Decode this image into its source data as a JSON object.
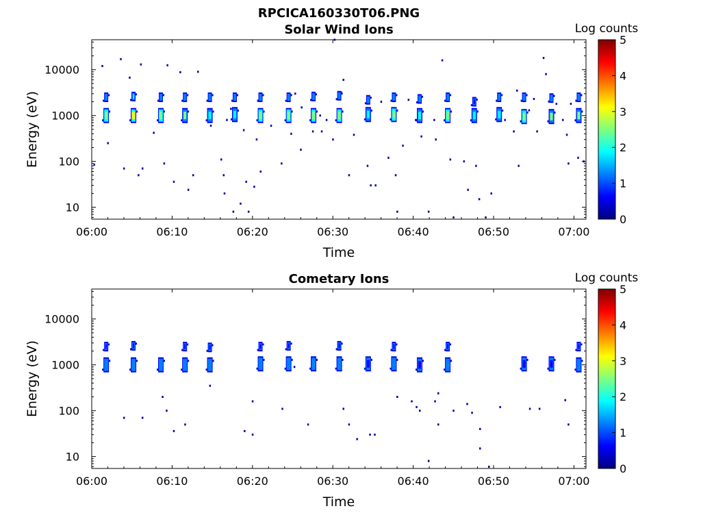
{
  "figure_title": "RPCICA160330T06.PNG",
  "colors": {
    "colormap": [
      "#00007f",
      "#0000ff",
      "#007fff",
      "#00ffff",
      "#7fff7f",
      "#ffff00",
      "#ff7f00",
      "#ff0000",
      "#7f0000"
    ]
  },
  "chart_data": [
    {
      "type": "heatmap",
      "title": "Solar Wind Ions",
      "xlabel": "Time",
      "ylabel": "Energy (eV)",
      "x_ticks": [
        "06:00",
        "06:10",
        "06:20",
        "06:30",
        "06:40",
        "06:50",
        "07:00"
      ],
      "x_range_minutes": [
        0,
        61.5
      ],
      "y_scale": "log",
      "y_ticks": [
        "10",
        "100",
        "1000",
        "10000"
      ],
      "y_range_ev": [
        5.5,
        45000
      ],
      "colorbar": {
        "label": "Log counts",
        "ticks": [
          "0",
          "1",
          "2",
          "3",
          "4",
          "5"
        ],
        "range": [
          0,
          5
        ]
      },
      "sweeps": [
        {
          "t": 1.8,
          "e1": 1000,
          "e2": 2500,
          "peak": 2.3
        },
        {
          "t": 5.2,
          "e1": 1000,
          "e2": 2600,
          "peak": 2.9
        },
        {
          "t": 8.6,
          "e1": 1000,
          "e2": 2500,
          "peak": 2.3
        },
        {
          "t": 11.6,
          "e1": 1000,
          "e2": 2500,
          "peak": 2.2
        },
        {
          "t": 14.7,
          "e1": 1000,
          "e2": 2500,
          "peak": 2.0
        },
        {
          "t": 17.8,
          "e1": 1050,
          "e2": 2500,
          "peak": 2.1
        },
        {
          "t": 21.0,
          "e1": 1000,
          "e2": 2500,
          "peak": 2.6
        },
        {
          "t": 24.5,
          "e1": 1000,
          "e2": 2500,
          "peak": 2.4
        },
        {
          "t": 27.6,
          "e1": 1000,
          "e2": 2600,
          "peak": 2.5
        },
        {
          "t": 30.8,
          "e1": 1000,
          "e2": 2700,
          "peak": 2.4
        },
        {
          "t": 34.4,
          "e1": 1050,
          "e2": 2200,
          "peak": 1.8
        },
        {
          "t": 37.6,
          "e1": 1050,
          "e2": 2500,
          "peak": 2.4
        },
        {
          "t": 40.8,
          "e1": 1000,
          "e2": 2300,
          "peak": 1.9
        },
        {
          "t": 44.3,
          "e1": 1000,
          "e2": 2500,
          "peak": 2.6
        },
        {
          "t": 47.6,
          "e1": 1000,
          "e2": 2000,
          "peak": 1.6
        },
        {
          "t": 50.7,
          "e1": 1050,
          "e2": 2500,
          "peak": 2.0
        },
        {
          "t": 53.8,
          "e1": 950,
          "e2": 2500,
          "peak": 2.3
        },
        {
          "t": 57.2,
          "e1": 950,
          "e2": 2400,
          "peak": 2.2
        },
        {
          "t": 60.6,
          "e1": 1000,
          "e2": 2500,
          "peak": 2.2
        }
      ],
      "dots": [
        [
          0.3,
          85
        ],
        [
          1.3,
          12000
        ],
        [
          2.0,
          250
        ],
        [
          3.6,
          17000
        ],
        [
          4.0,
          70
        ],
        [
          4.7,
          6700
        ],
        [
          5.8,
          50
        ],
        [
          6.1,
          13000
        ],
        [
          6.3,
          70
        ],
        [
          7.7,
          420
        ],
        [
          9.0,
          90
        ],
        [
          9.4,
          12500
        ],
        [
          10.2,
          36
        ],
        [
          11.0,
          8800
        ],
        [
          12.6,
          50
        ],
        [
          13.2,
          9000
        ],
        [
          12.0,
          24
        ],
        [
          14.8,
          600
        ],
        [
          16.1,
          110
        ],
        [
          16.4,
          50
        ],
        [
          16.5,
          20
        ],
        [
          17.3,
          1400
        ],
        [
          17.6,
          8
        ],
        [
          18.5,
          12
        ],
        [
          19.2,
          36
        ],
        [
          19.5,
          8
        ],
        [
          20.2,
          28
        ],
        [
          20.5,
          300
        ],
        [
          21.0,
          60
        ],
        [
          22.3,
          600
        ],
        [
          23.6,
          90
        ],
        [
          24.8,
          400
        ],
        [
          25.3,
          3000
        ],
        [
          26.1,
          1500
        ],
        [
          27.5,
          450
        ],
        [
          28.4,
          1000
        ],
        [
          28.6,
          450
        ],
        [
          29.2,
          800
        ],
        [
          30.0,
          300
        ],
        [
          31.3,
          6000
        ],
        [
          32.0,
          50
        ],
        [
          32.6,
          380
        ],
        [
          34.3,
          80
        ],
        [
          34.7,
          30
        ],
        [
          35.3,
          30
        ],
        [
          36.9,
          120
        ],
        [
          37.8,
          50
        ],
        [
          38.0,
          8
        ],
        [
          38.7,
          220
        ],
        [
          39.4,
          2200
        ],
        [
          40.3,
          800
        ],
        [
          41.0,
          350
        ],
        [
          41.9,
          8
        ],
        [
          42.6,
          800
        ],
        [
          43.6,
          16000
        ],
        [
          44.6,
          110
        ],
        [
          45.0,
          6
        ],
        [
          46.3,
          100
        ],
        [
          46.8,
          24
        ],
        [
          47.8,
          80
        ],
        [
          48.2,
          15
        ],
        [
          49.0,
          6
        ],
        [
          49.7,
          20
        ],
        [
          51.4,
          800
        ],
        [
          52.5,
          450
        ],
        [
          53.1,
          80
        ],
        [
          54.4,
          1300
        ],
        [
          55.0,
          2300
        ],
        [
          55.4,
          450
        ],
        [
          56.2,
          18000
        ],
        [
          56.5,
          8000
        ],
        [
          57.8,
          1800
        ],
        [
          58.6,
          800
        ],
        [
          59.1,
          380
        ],
        [
          59.3,
          90
        ],
        [
          59.6,
          1800
        ],
        [
          60.5,
          120
        ],
        [
          61.2,
          100
        ],
        [
          30.2,
          45000
        ],
        [
          31.0,
          3200
        ],
        [
          36.0,
          2000
        ],
        [
          16.8,
          800
        ],
        [
          42.8,
          300
        ],
        [
          26.0,
          180
        ],
        [
          52.9,
          3500
        ],
        [
          18.9,
          480
        ]
      ]
    },
    {
      "type": "heatmap",
      "title": "Cometary Ions",
      "xlabel": "Time",
      "ylabel": "Energy (eV)",
      "x_ticks": [
        "06:00",
        "06:10",
        "06:20",
        "06:30",
        "06:40",
        "06:50",
        "07:00"
      ],
      "x_range_minutes": [
        0,
        61.5
      ],
      "y_scale": "log",
      "y_ticks": [
        "10",
        "100",
        "1000",
        "10000"
      ],
      "y_range_ev": [
        5.5,
        45000
      ],
      "colorbar": {
        "label": "Log counts",
        "ticks": [
          "0",
          "1",
          "2",
          "3",
          "4",
          "5"
        ],
        "range": [
          0,
          5
        ]
      },
      "sweeps": [
        {
          "t": 1.8,
          "e1": 1000,
          "e2": 2500,
          "peak": 1.3
        },
        {
          "t": 5.2,
          "e1": 1000,
          "e2": 2600,
          "peak": 1.4
        },
        {
          "t": 8.6,
          "e1": 1000,
          "e2": 0,
          "peak": 1.2
        },
        {
          "t": 11.6,
          "e1": 1000,
          "e2": 2500,
          "peak": 1.3
        },
        {
          "t": 14.7,
          "e1": 1000,
          "e2": 2400,
          "peak": 1.1
        },
        {
          "t": 21.0,
          "e1": 1050,
          "e2": 2500,
          "peak": 1.3
        },
        {
          "t": 24.5,
          "e1": 1050,
          "e2": 2600,
          "peak": 1.1
        },
        {
          "t": 27.6,
          "e1": 1050,
          "e2": 0,
          "peak": 1.1
        },
        {
          "t": 30.8,
          "e1": 1050,
          "e2": 2600,
          "peak": 1.2
        },
        {
          "t": 34.4,
          "e1": 1050,
          "e2": 0,
          "peak": 0.9
        },
        {
          "t": 37.6,
          "e1": 1050,
          "e2": 2500,
          "peak": 1.4
        },
        {
          "t": 40.8,
          "e1": 1000,
          "e2": 0,
          "peak": 0.9
        },
        {
          "t": 44.3,
          "e1": 1000,
          "e2": 2500,
          "peak": 1.3
        },
        {
          "t": 53.8,
          "e1": 1050,
          "e2": 0,
          "peak": 0.9
        },
        {
          "t": 57.2,
          "e1": 1050,
          "e2": 0,
          "peak": 0.9
        },
        {
          "t": 60.6,
          "e1": 1000,
          "e2": 2500,
          "peak": 1.0
        }
      ],
      "dots": [
        [
          4.0,
          70
        ],
        [
          6.3,
          70
        ],
        [
          8.8,
          200
        ],
        [
          9.3,
          100
        ],
        [
          10.2,
          36
        ],
        [
          11.6,
          50
        ],
        [
          14.7,
          350
        ],
        [
          19.0,
          36
        ],
        [
          20.0,
          30
        ],
        [
          20.0,
          160
        ],
        [
          23.7,
          110
        ],
        [
          25.2,
          900
        ],
        [
          26.9,
          50
        ],
        [
          31.3,
          110
        ],
        [
          32.0,
          50
        ],
        [
          33.0,
          24
        ],
        [
          34.6,
          30
        ],
        [
          35.2,
          30
        ],
        [
          38.0,
          200
        ],
        [
          39.8,
          160
        ],
        [
          40.4,
          120
        ],
        [
          40.8,
          100
        ],
        [
          41.9,
          8
        ],
        [
          42.7,
          160
        ],
        [
          43.1,
          240
        ],
        [
          43.1,
          50
        ],
        [
          45.0,
          100
        ],
        [
          46.7,
          140
        ],
        [
          47.3,
          90
        ],
        [
          48.3,
          40
        ],
        [
          48.3,
          15
        ],
        [
          49.4,
          6
        ],
        [
          50.8,
          120
        ],
        [
          54.5,
          110
        ],
        [
          55.7,
          110
        ],
        [
          58.9,
          170
        ],
        [
          59.3,
          50
        ]
      ]
    }
  ]
}
